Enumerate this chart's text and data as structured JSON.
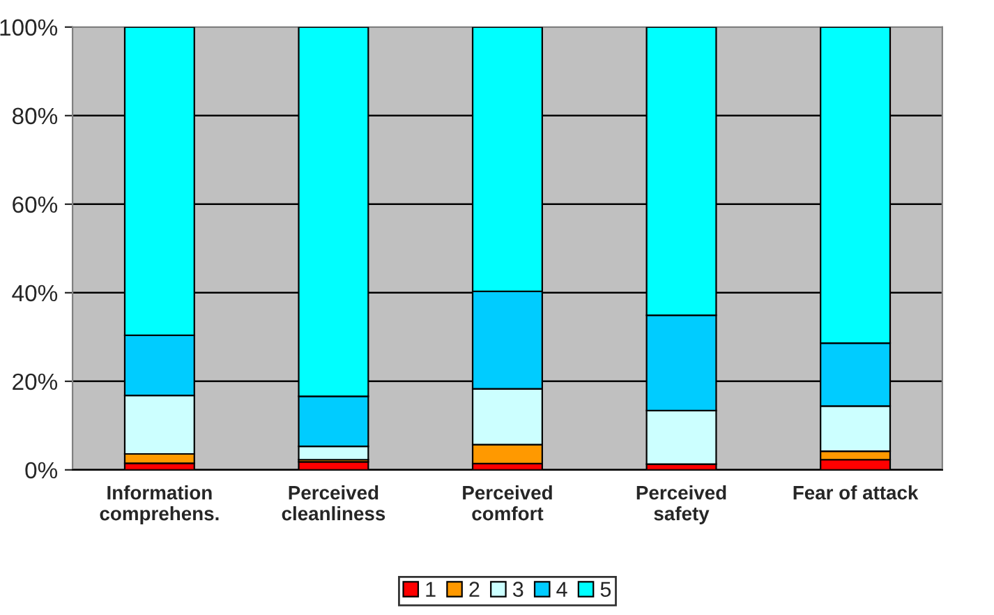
{
  "chart_data": {
    "type": "bar",
    "stacked": true,
    "categories": [
      "Information\ncomprehens.",
      "Perceived\ncleanliness",
      "Perceived\ncomfort",
      "Perceived\nsafety",
      "Fear of attack"
    ],
    "series": [
      {
        "name": "1",
        "color": "#ff0000",
        "values": [
          1.5,
          1.8,
          1.4,
          1.3,
          2.3
        ]
      },
      {
        "name": "2",
        "color": "#ff9900",
        "values": [
          2.1,
          0.5,
          4.3,
          null,
          1.9
        ]
      },
      {
        "name": "3",
        "color": "#ccffff",
        "values": [
          13.2,
          3.0,
          12.6,
          12.1,
          10.2
        ]
      },
      {
        "name": "4",
        "color": "#00ccff",
        "values": [
          13.6,
          11.3,
          22.0,
          21.5,
          14.2
        ]
      },
      {
        "name": "5",
        "color": "#00ffff",
        "values": [
          69.6,
          83.4,
          59.7,
          65.1,
          71.4
        ]
      }
    ],
    "ylim": [
      0,
      100
    ],
    "yticks": [
      {
        "value": 0,
        "label": "0%"
      },
      {
        "value": 20,
        "label": "20%"
      },
      {
        "value": 40,
        "label": "40%"
      },
      {
        "value": 60,
        "label": "60%"
      },
      {
        "value": 80,
        "label": "80%"
      },
      {
        "value": 100,
        "label": "100%"
      }
    ],
    "grid": "y",
    "legend": "bottom"
  }
}
